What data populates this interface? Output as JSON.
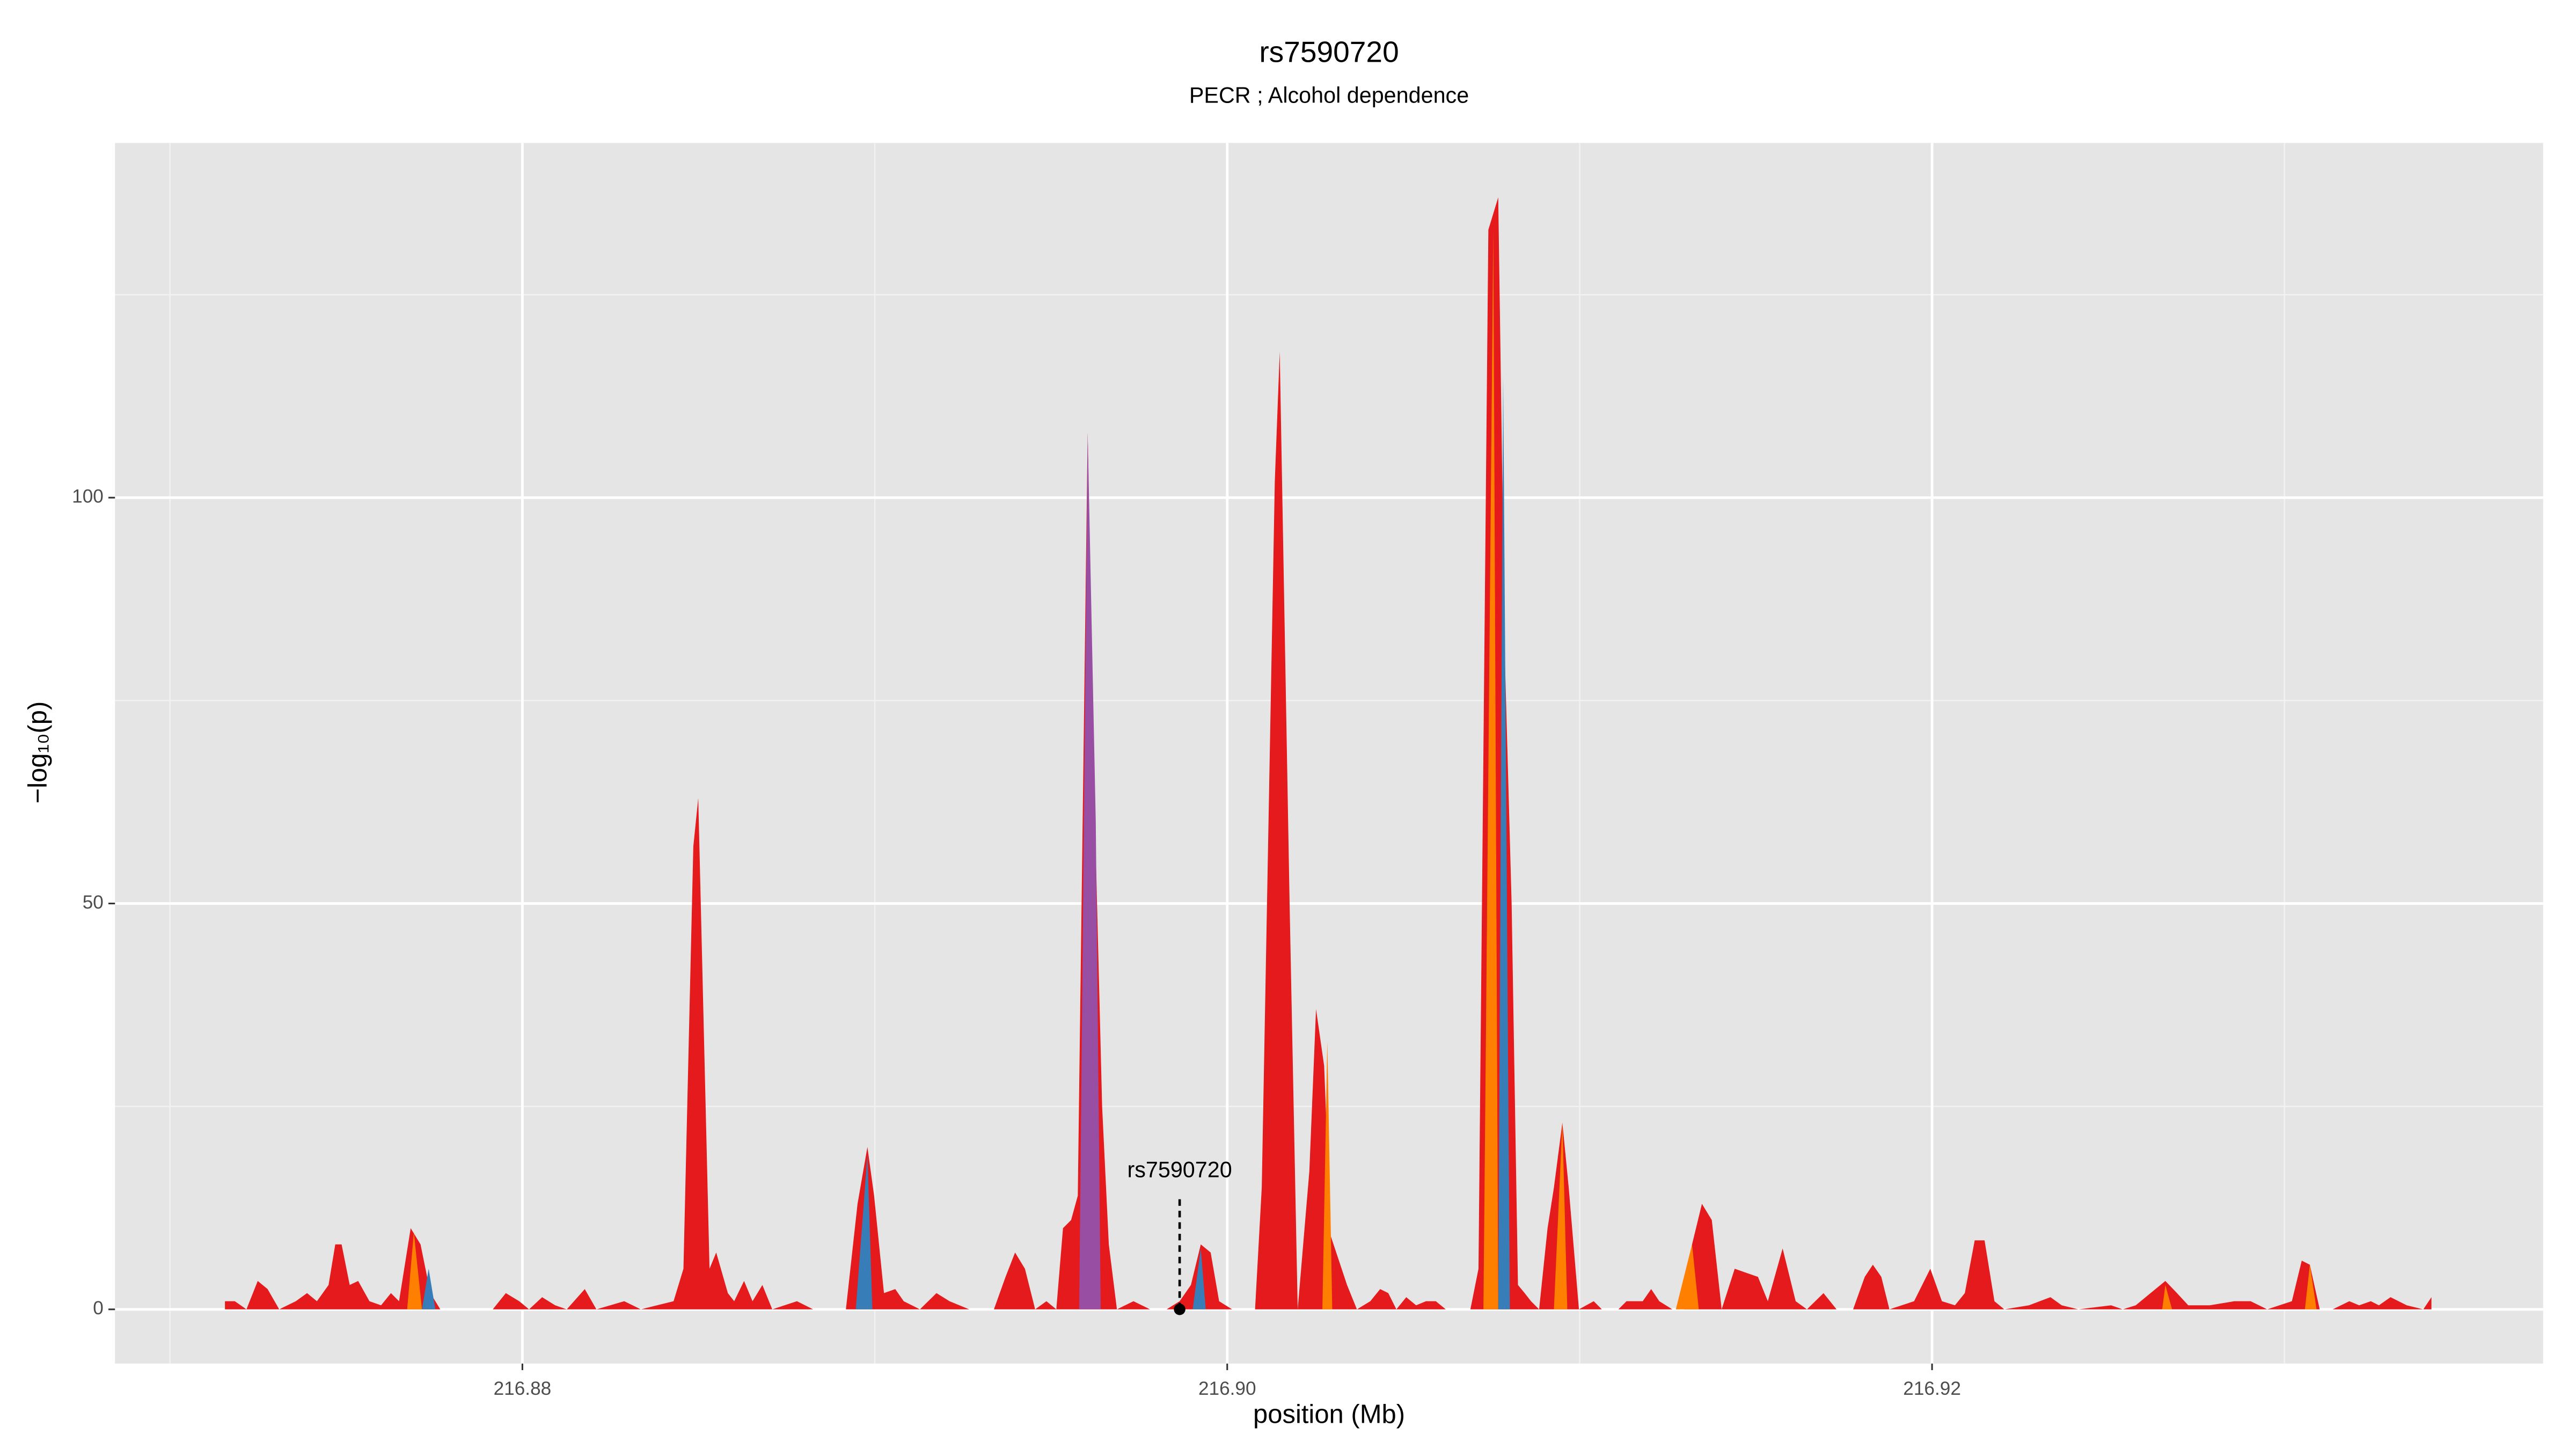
{
  "chart_data": {
    "type": "area",
    "title": "rs7590720",
    "subtitle": "PECR ; Alcohol dependence",
    "x_label": "position (Mb)",
    "y_label": "−log₁₀(p)",
    "xlim": [
      216.86844,
      216.93734
    ],
    "ylim": [
      -6.68,
      143.7
    ],
    "xticks": [
      216.88,
      {
        "value": 216.9,
        "label": "216.90"
      },
      216.92
    ],
    "yticks": [
      0,
      50,
      100
    ],
    "grid": true,
    "minor_grid": true,
    "background": "#e5e5e5",
    "annotation": {
      "text": "rs7590720",
      "x": 216.89865,
      "y": 0
    },
    "series": [
      {
        "color": "#e41a1c",
        "x": [
          216.87156,
          216.87184,
          216.87217,
          216.87249,
          216.87277,
          216.8731,
          216.87357,
          216.87389,
          216.87417,
          216.8745,
          216.87469,
          216.87487,
          216.8751,
          216.87534,
          216.87566,
          216.87599,
          216.87627,
          216.8765,
          216.87683,
          216.87711,
          216.87739,
          216.87767,
          216.87916,
          216.87953,
          216.87991,
          216.88019,
          216.88056,
          216.88093,
          216.88126,
          216.88177,
          216.8821,
          216.88289,
          216.88336,
          216.88382,
          216.88429,
          216.88457,
          216.88485,
          216.88499,
          216.88531,
          216.8855,
          216.88583,
          216.88601,
          216.88629,
          216.88653,
          216.88681,
          216.88709,
          216.88779,
          216.88825,
          216.88918,
          216.88951,
          216.88979,
          216.88998,
          216.89026,
          216.89058,
          216.89082,
          216.89128,
          216.89175,
          216.89212,
          216.89268,
          216.89338,
          216.89371,
          216.89398,
          216.89426,
          216.89455,
          216.89487,
          216.89515,
          216.89534,
          216.89557,
          216.89576,
          216.89604,
          216.89622,
          216.89645,
          216.89664,
          216.89687,
          216.89734,
          216.89781,
          216.89828,
          216.89865,
          216.89897,
          216.89925,
          216.89953,
          216.89977,
          216.90014,
          216.90051,
          216.90079,
          216.90098,
          216.90135,
          216.90149,
          216.90177,
          216.902,
          216.90233,
          216.90252,
          216.90275,
          216.90294,
          216.90317,
          216.9034,
          216.90368,
          216.90406,
          216.90434,
          216.90457,
          216.9048,
          216.90508,
          216.90536,
          216.90564,
          216.90592,
          216.9062,
          216.9069,
          216.90713,
          216.90741,
          216.90769,
          216.90788,
          216.90807,
          216.90825,
          216.90844,
          216.90862,
          216.90885,
          216.90909,
          216.90927,
          216.90951,
          216.90969,
          216.90998,
          216.9104,
          216.91063,
          216.9111,
          216.91133,
          216.91179,
          216.91203,
          216.91226,
          216.91263,
          216.91296,
          216.91319,
          216.91347,
          216.91375,
          216.91403,
          216.9144,
          216.91473,
          216.91506,
          216.91534,
          216.91576,
          216.91613,
          216.91645,
          216.91692,
          216.91729,
          216.91776,
          216.91809,
          216.91832,
          216.91856,
          216.91879,
          216.91949,
          216.91995,
          216.92028,
          216.92065,
          216.92093,
          216.92121,
          216.92149,
          216.92177,
          216.92205,
          216.92275,
          216.92336,
          216.92368,
          216.92415,
          216.92508,
          216.92541,
          216.92578,
          216.92662,
          216.92695,
          216.92727,
          216.92788,
          216.92858,
          216.92904,
          216.92951,
          216.93021,
          216.93049,
          216.93072,
          216.931,
          216.93137,
          216.93184,
          216.93212,
          216.93245,
          216.93268,
          216.93301,
          216.93347,
          216.93394,
          216.93417
        ],
        "values": [
          1,
          1,
          0,
          3.5,
          2.5,
          0,
          1,
          2,
          1,
          3,
          8,
          8,
          3,
          3.5,
          1,
          0.5,
          2,
          1,
          10,
          8,
          2,
          0,
          0,
          2,
          1,
          0,
          1.5,
          0.5,
          0,
          2.5,
          0,
          1,
          0,
          0.5,
          1,
          5,
          57,
          63,
          5,
          7,
          2,
          1,
          3.5,
          1,
          3,
          0,
          1,
          0,
          0,
          13,
          20,
          14,
          2,
          2.5,
          1,
          0,
          2,
          1,
          0,
          0,
          4,
          7,
          5,
          0,
          1,
          0,
          10,
          11,
          14,
          108,
          65,
          25,
          8,
          0,
          1,
          0,
          0,
          1,
          3,
          8,
          7,
          1,
          0,
          0,
          0,
          15,
          102,
          118,
          50,
          0,
          17,
          37,
          30,
          9,
          6,
          3,
          0,
          1,
          2.5,
          2,
          0,
          1.5,
          0.5,
          1,
          1,
          0,
          0,
          5,
          133,
          137,
          80,
          50,
          3,
          2,
          1,
          0,
          10,
          15,
          23,
          15,
          0,
          1,
          0,
          0,
          1,
          1,
          2.5,
          1,
          0,
          0,
          8,
          13,
          11,
          0,
          5,
          4.5,
          4,
          1,
          7.5,
          1,
          0,
          2,
          0,
          0,
          4,
          5.5,
          4,
          0,
          1,
          5,
          1,
          0.5,
          2,
          8.5,
          8.5,
          1,
          0,
          0.5,
          1.5,
          0.5,
          0,
          0.5,
          0,
          0.5,
          3.5,
          2,
          0.5,
          0.5,
          1,
          1,
          0,
          1,
          6,
          5.5,
          0,
          0,
          1,
          0.5,
          1,
          0.5,
          1.5,
          0.5,
          0,
          1.5
        ]
      },
      {
        "color": "#984ea3",
        "x": [
          216.8958,
          216.89604,
          216.89627,
          216.89641
        ],
        "values": [
          0,
          108,
          60,
          0
        ]
      },
      {
        "color": "#ff7f00",
        "x": [
          216.90727,
          216.90755,
          216.90769
        ],
        "values": [
          0,
          133,
          0
        ]
      },
      {
        "color": "#377eb8",
        "x": [
          216.90769,
          216.90783,
          216.90802
        ],
        "values": [
          0,
          115,
          0
        ]
      },
      {
        "color": "#ff7f00",
        "x": [
          216.90927,
          216.90951,
          216.90965
        ],
        "values": [
          0,
          23,
          0
        ]
      },
      {
        "color": "#377eb8",
        "x": [
          216.88946,
          216.88979,
          216.88993
        ],
        "values": [
          0,
          19,
          0
        ]
      },
      {
        "color": "#ff7f00",
        "x": [
          216.9027,
          216.90284,
          216.90298
        ],
        "values": [
          0,
          33,
          0
        ]
      },
      {
        "color": "#ff7f00",
        "x": [
          216.91273,
          216.91319,
          216.91338
        ],
        "values": [
          0,
          8,
          0
        ]
      },
      {
        "color": "#ff7f00",
        "x": [
          216.87673,
          216.87692,
          216.87715
        ],
        "values": [
          0,
          9.5,
          0
        ]
      },
      {
        "color": "#377eb8",
        "x": [
          216.87715,
          216.87734,
          216.87753
        ],
        "values": [
          0,
          5,
          0
        ]
      },
      {
        "color": "#377eb8",
        "x": [
          216.89902,
          216.89925,
          216.89939
        ],
        "values": [
          0,
          7.5,
          0
        ]
      },
      {
        "color": "#ff7f00",
        "x": [
          216.92653,
          216.92662,
          216.92681
        ],
        "values": [
          0,
          3,
          0
        ]
      },
      {
        "color": "#ff7f00",
        "x": [
          216.93058,
          216.93072,
          216.93091
        ],
        "values": [
          0,
          5.5,
          0
        ]
      }
    ]
  }
}
